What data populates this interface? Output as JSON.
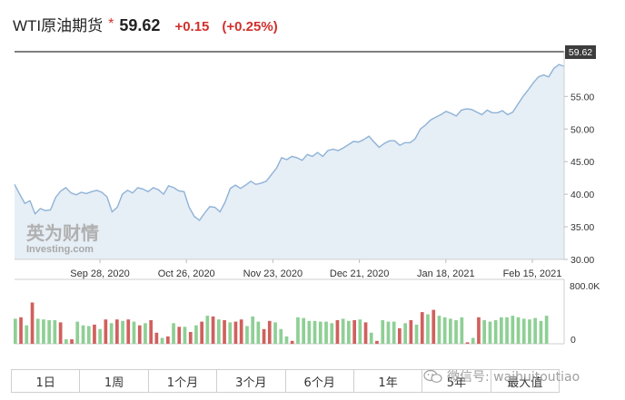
{
  "header": {
    "title": "WTI原油期货",
    "star": "*",
    "price": "59.62",
    "change": "+0.15",
    "change_pct": "(+0.25%)"
  },
  "colors": {
    "price_line": "#8fb2d6",
    "area_fill": "#e6eef6",
    "up_bar": "#8fcf95",
    "down_bar": "#d0605e",
    "accent_red": "#d0312d"
  },
  "chart_data": {
    "type": "area",
    "y_axis": {
      "ticks": [
        "30.00",
        "35.00",
        "40.00",
        "45.00",
        "50.00",
        "55.00"
      ],
      "ylim": [
        30,
        62
      ]
    },
    "x_axis": {
      "tick_labels": [
        "Sep 28, 2020",
        "Oct 26, 2020",
        "Nov 23, 2020",
        "Dec 21, 2020",
        "Jan 18, 2021",
        "Feb 15, 2021"
      ]
    },
    "last_price_label": "59.62",
    "logo": {
      "cn": "英为财情",
      "en": "Investing.com"
    },
    "price_series": [
      41.5,
      40.0,
      38.6,
      39.0,
      37.0,
      37.8,
      37.5,
      37.6,
      39.5,
      40.5,
      41.0,
      40.2,
      39.9,
      40.3,
      40.1,
      40.4,
      40.6,
      40.3,
      39.6,
      37.3,
      38.0,
      40.0,
      40.6,
      40.2,
      41.0,
      40.8,
      40.4,
      41.0,
      40.7,
      40.0,
      41.3,
      41.0,
      40.5,
      40.4,
      38.0,
      36.6,
      36.0,
      37.1,
      38.1,
      38.0,
      37.3,
      38.8,
      40.9,
      41.4,
      40.9,
      41.4,
      42.0,
      41.5,
      41.7,
      42.0,
      43.0,
      44.0,
      45.6,
      45.3,
      45.8,
      45.6,
      45.2,
      46.1,
      45.8,
      46.4,
      45.8,
      46.7,
      46.9,
      46.7,
      47.1,
      47.6,
      48.1,
      48.0,
      48.4,
      48.9,
      48.0,
      47.2,
      47.8,
      48.2,
      48.2,
      47.5,
      47.9,
      47.9,
      48.5,
      50.0,
      50.6,
      51.4,
      51.8,
      52.2,
      52.7,
      52.4,
      52.0,
      52.9,
      53.1,
      53.0,
      52.6,
      52.2,
      52.9,
      52.5,
      52.5,
      52.8,
      52.2,
      52.6,
      53.8,
      55.0,
      56.0,
      57.1,
      58.0,
      58.3,
      58.0,
      59.3,
      59.9,
      59.62
    ],
    "volume": {
      "y_labels": [
        "800.0K",
        "0"
      ],
      "values": [
        340,
        360,
        250,
        560,
        340,
        330,
        320,
        320,
        290,
        60,
        60,
        300,
        250,
        240,
        260,
        200,
        330,
        280,
        330,
        310,
        330,
        300,
        250,
        280,
        320,
        150,
        80,
        100,
        280,
        230,
        230,
        160,
        250,
        300,
        380,
        370,
        330,
        320,
        290,
        300,
        330,
        240,
        370,
        300,
        200,
        310,
        290,
        200,
        100,
        40,
        360,
        350,
        310,
        310,
        300,
        300,
        280,
        320,
        340,
        310,
        320,
        330,
        290,
        150,
        40,
        320,
        300,
        300,
        210,
        280,
        320,
        260,
        430,
        400,
        460,
        380,
        360,
        340,
        320,
        360,
        20,
        80,
        360,
        320,
        300,
        320,
        360,
        360,
        380,
        360,
        340,
        330,
        350,
        310,
        380
      ],
      "directions": [
        "up",
        "down",
        "up",
        "down",
        "up",
        "up",
        "up",
        "up",
        "down",
        "up",
        "down",
        "up",
        "up",
        "up",
        "down",
        "up",
        "down",
        "up",
        "down",
        "up",
        "down",
        "up",
        "down",
        "up",
        "down",
        "down",
        "up",
        "down",
        "up",
        "down",
        "up",
        "down",
        "up",
        "down",
        "up",
        "down",
        "up",
        "down",
        "up",
        "down",
        "down",
        "up",
        "up",
        "up",
        "down",
        "down",
        "up",
        "up",
        "up",
        "down",
        "up",
        "up",
        "up",
        "up",
        "up",
        "up",
        "up",
        "down",
        "up",
        "up",
        "down",
        "up",
        "down",
        "up",
        "down",
        "up",
        "up",
        "up",
        "down",
        "up",
        "down",
        "up",
        "down",
        "up",
        "down",
        "up",
        "up",
        "up",
        "up",
        "up",
        "down",
        "up",
        "down",
        "up",
        "up",
        "up",
        "up",
        "up",
        "up",
        "up",
        "up",
        "up",
        "up",
        "up",
        "up"
      ]
    }
  },
  "range_buttons": [
    "1日",
    "1周",
    "1个月",
    "3个月",
    "6个月",
    "1年",
    "5年",
    "最大值"
  ],
  "watermark": {
    "text": "微信号: waihuitoutiao"
  }
}
